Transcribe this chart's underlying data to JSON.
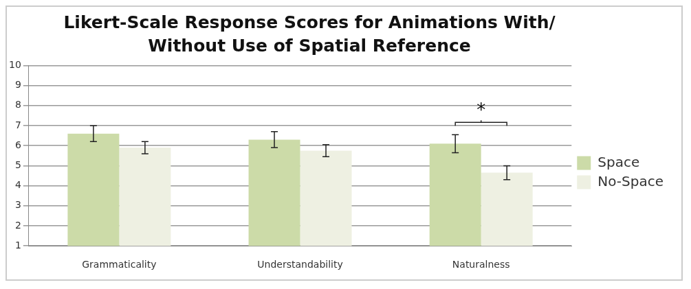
{
  "chart_data": {
    "type": "bar",
    "title": "Likert-Scale Response Scores for Animations With/ Without Use of Spatial Reference",
    "categories": [
      "Grammaticality",
      "Understandability",
      "Naturalness"
    ],
    "series": [
      {
        "name": "Space",
        "color": "#ccdba8",
        "values": [
          6.6,
          6.3,
          6.1
        ],
        "errors": [
          0.4,
          0.4,
          0.45
        ]
      },
      {
        "name": "No-Space",
        "color": "#eef0e2",
        "values": [
          5.9,
          5.75,
          4.65
        ],
        "errors": [
          0.3,
          0.3,
          0.35
        ]
      }
    ],
    "ylim": [
      1,
      10
    ],
    "yticks": [
      1,
      2,
      3,
      4,
      5,
      6,
      7,
      8,
      9,
      10
    ],
    "grid": "y",
    "legend": "right",
    "annotations": [
      "*"
    ]
  }
}
